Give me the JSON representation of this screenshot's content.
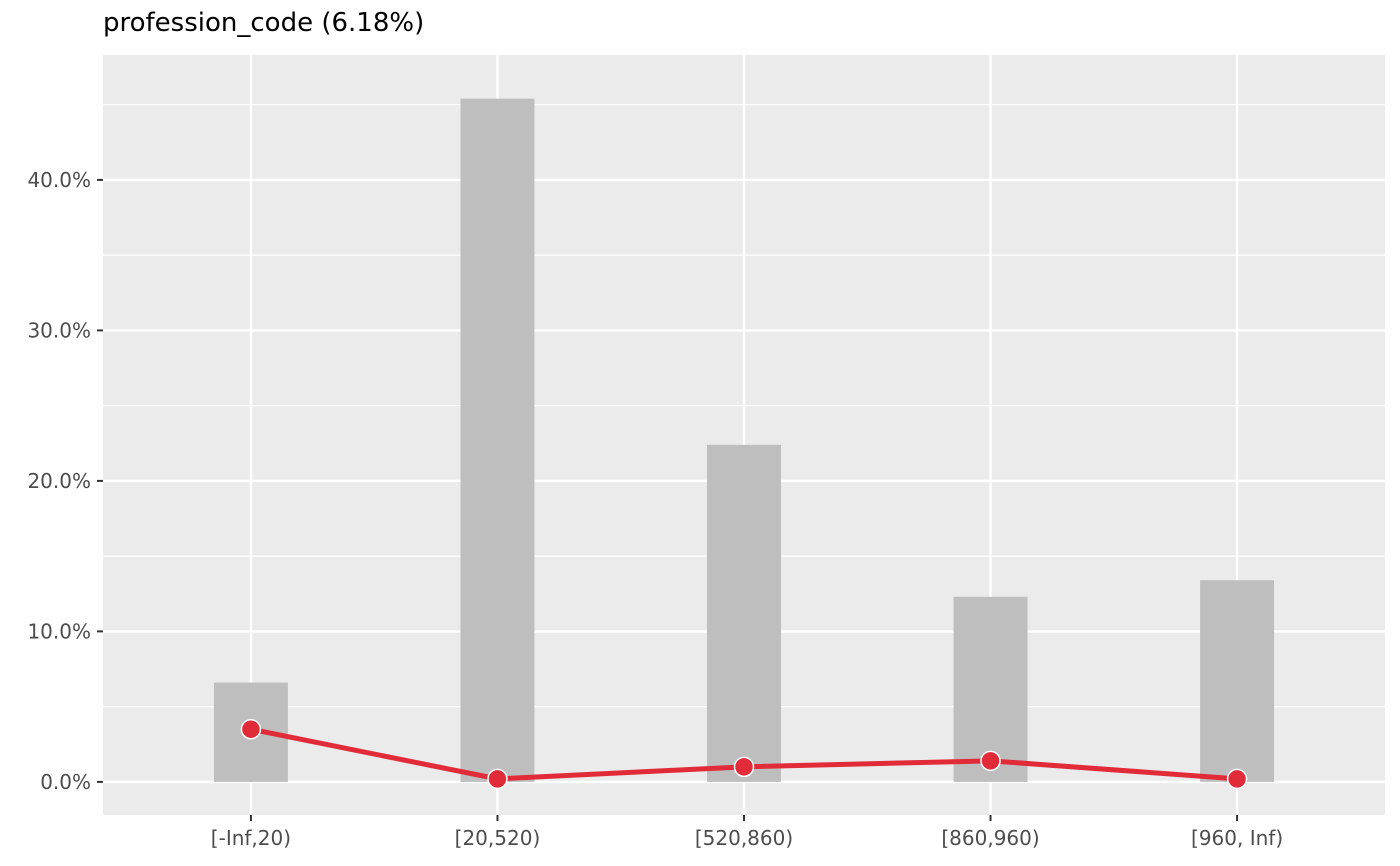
{
  "chart_data": {
    "type": "bar",
    "title": "profession_code (6.18%)",
    "xlabel": "",
    "ylabel": "",
    "categories": [
      "[-Inf,20)",
      "[20,520)",
      "[520,860)",
      "[860,960)",
      "[960, Inf)"
    ],
    "series": [
      {
        "type": "bar",
        "values": [
          6.6,
          45.4,
          22.4,
          12.3,
          13.4
        ]
      },
      {
        "type": "line",
        "values": [
          3.5,
          0.2,
          1.0,
          1.4,
          0.2
        ]
      }
    ],
    "ylim": [
      -2.2,
      48.3
    ],
    "yticks": [
      0,
      10,
      20,
      30,
      40
    ],
    "ytick_labels": [
      "0.0%",
      "10.0%",
      "20.0%",
      "30.0%",
      "40.0%"
    ],
    "grid": true,
    "legend": "none",
    "colors": {
      "panel": "#ebebeb",
      "grid": "#ffffff",
      "bar": "#bebebe",
      "line": "#e12b38",
      "point_outline": "#ffffff"
    }
  }
}
